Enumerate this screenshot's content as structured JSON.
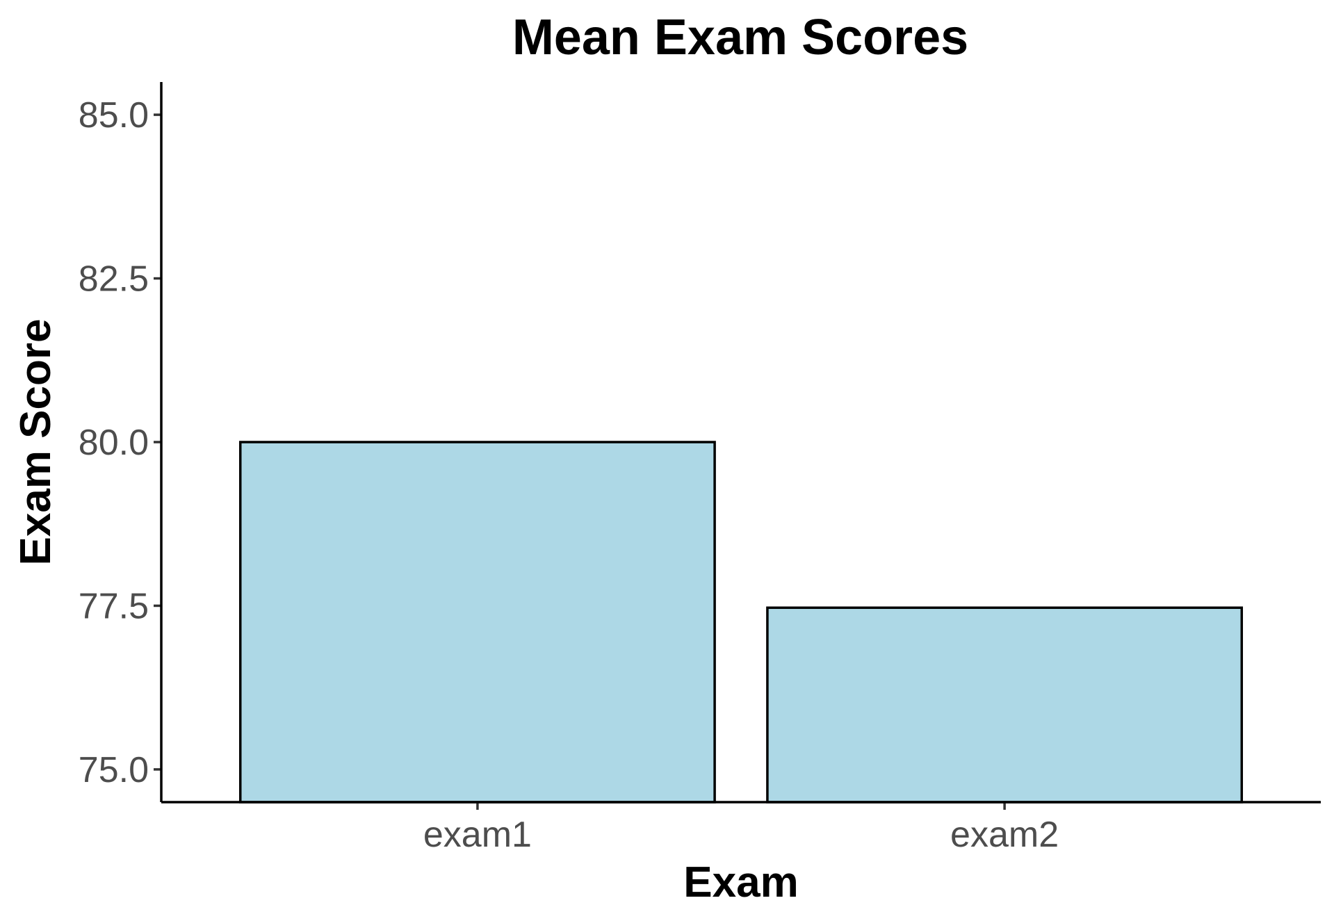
{
  "chart_data": {
    "type": "bar",
    "title": "Mean Exam Scores",
    "xlabel": "Exam",
    "ylabel": "Exam Score",
    "categories": [
      "exam1",
      "exam2"
    ],
    "values": [
      80.0,
      77.47
    ],
    "ylim": [
      74.5,
      85.5
    ],
    "yticks": [
      75.0,
      77.5,
      80.0,
      82.5,
      85.0
    ],
    "ytick_labels": [
      "75.0",
      "77.5",
      "80.0",
      "82.5",
      "85.0"
    ],
    "bar_color": "#add8e6",
    "bar_edge_color": "#000000",
    "grid": false,
    "legend": "none"
  }
}
